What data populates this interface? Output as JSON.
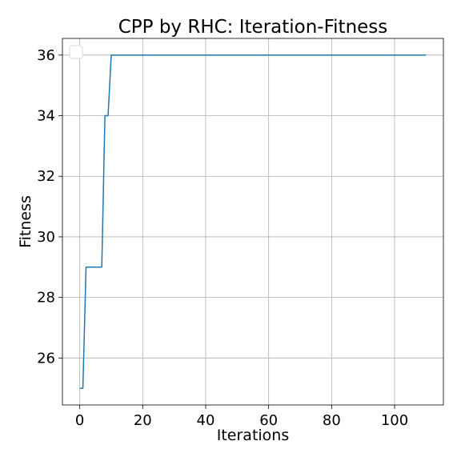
{
  "chart_data": {
    "type": "line",
    "title": "CPP by RHC: Iteration-Fitness",
    "xlabel": "Iterations",
    "ylabel": "Fitness",
    "xlim": [
      -5.5,
      115.5
    ],
    "ylim": [
      24.45,
      36.55
    ],
    "xticks": [
      0,
      20,
      40,
      60,
      80,
      100
    ],
    "yticks": [
      26,
      28,
      30,
      32,
      34,
      36
    ],
    "xtick_labels": [
      "0",
      "20",
      "40",
      "60",
      "80",
      "100"
    ],
    "ytick_labels": [
      "26",
      "28",
      "30",
      "32",
      "34",
      "36"
    ],
    "grid": true,
    "legend": "top-left (empty)",
    "series": [
      {
        "color": "#1f77b4",
        "x": [
          0,
          1,
          2,
          3,
          4,
          5,
          6,
          7,
          8,
          9,
          10,
          11,
          12,
          13,
          14,
          15,
          16,
          17,
          18,
          19,
          20,
          21,
          22,
          23,
          24,
          25,
          26,
          27,
          28,
          29,
          30,
          31,
          32,
          33,
          34,
          35,
          36,
          37,
          38,
          39,
          40,
          41,
          42,
          43,
          44,
          45,
          46,
          47,
          48,
          49,
          50,
          51,
          52,
          53,
          54,
          55,
          56,
          57,
          58,
          59,
          60,
          61,
          62,
          63,
          64,
          65,
          66,
          67,
          68,
          69,
          70,
          71,
          72,
          73,
          74,
          75,
          76,
          77,
          78,
          79,
          80,
          81,
          82,
          83,
          84,
          85,
          86,
          87,
          88,
          89,
          90,
          91,
          92,
          93,
          94,
          95,
          96,
          97,
          98,
          99,
          100,
          101,
          102,
          103,
          104,
          105,
          106,
          107,
          108,
          109,
          110
        ],
        "y": [
          25,
          25,
          29,
          29,
          29,
          29,
          29,
          29,
          34,
          34,
          36,
          36,
          36,
          36,
          36,
          36,
          36,
          36,
          36,
          36,
          36,
          36,
          36,
          36,
          36,
          36,
          36,
          36,
          36,
          36,
          36,
          36,
          36,
          36,
          36,
          36,
          36,
          36,
          36,
          36,
          36,
          36,
          36,
          36,
          36,
          36,
          36,
          36,
          36,
          36,
          36,
          36,
          36,
          36,
          36,
          36,
          36,
          36,
          36,
          36,
          36,
          36,
          36,
          36,
          36,
          36,
          36,
          36,
          36,
          36,
          36,
          36,
          36,
          36,
          36,
          36,
          36,
          36,
          36,
          36,
          36,
          36,
          36,
          36,
          36,
          36,
          36,
          36,
          36,
          36,
          36,
          36,
          36,
          36,
          36,
          36,
          36,
          36,
          36,
          36,
          36,
          36,
          36,
          36,
          36,
          36,
          36,
          36,
          36,
          36,
          36
        ]
      }
    ]
  }
}
